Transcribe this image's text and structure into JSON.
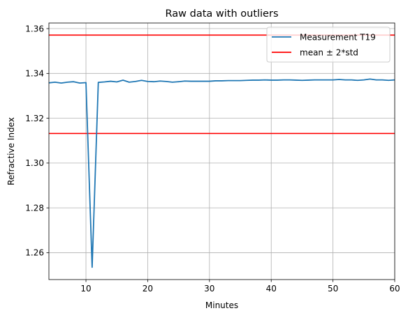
{
  "chart_data": {
    "type": "line",
    "title": "Raw data with outliers",
    "xlabel": "Minutes",
    "ylabel": "Refractive Index",
    "xlim": [
      4,
      60
    ],
    "ylim": [
      1.248,
      1.3625
    ],
    "xticks": [
      10,
      20,
      30,
      40,
      50,
      60
    ],
    "yticks": [
      1.26,
      1.28,
      1.3,
      1.32,
      1.34,
      1.36
    ],
    "ytick_labels": [
      "1.26",
      "1.28",
      "1.30",
      "1.32",
      "1.34",
      "1.36"
    ],
    "grid": true,
    "legend_position": "top-right",
    "series": [
      {
        "name": "Measurement T19",
        "color": "#1f77b4",
        "x": [
          4,
          5,
          6,
          7,
          8,
          9,
          10,
          11,
          12,
          13,
          14,
          15,
          16,
          17,
          18,
          19,
          20,
          21,
          22,
          23,
          24,
          25,
          26,
          27,
          28,
          29,
          30,
          31,
          32,
          33,
          34,
          35,
          36,
          37,
          38,
          39,
          40,
          41,
          42,
          43,
          44,
          45,
          46,
          47,
          48,
          49,
          50,
          51,
          52,
          53,
          54,
          55,
          56,
          57,
          58,
          59,
          60
        ],
        "y": [
          1.3358,
          1.3361,
          1.3357,
          1.3361,
          1.3363,
          1.3357,
          1.3359,
          1.2535,
          1.336,
          1.3362,
          1.3365,
          1.3362,
          1.337,
          1.3361,
          1.3364,
          1.3369,
          1.3364,
          1.3363,
          1.3366,
          1.3364,
          1.3361,
          1.3363,
          1.3366,
          1.3365,
          1.3365,
          1.3365,
          1.3365,
          1.3367,
          1.3367,
          1.3368,
          1.3368,
          1.3368,
          1.3369,
          1.337,
          1.337,
          1.3371,
          1.337,
          1.337,
          1.3371,
          1.3371,
          1.337,
          1.3369,
          1.337,
          1.3371,
          1.3371,
          1.3371,
          1.3371,
          1.3373,
          1.3371,
          1.3371,
          1.3369,
          1.3371,
          1.3375,
          1.3371,
          1.3371,
          1.3369,
          1.3371
        ]
      },
      {
        "name": "mean ± 2*std",
        "color": "#ff0000",
        "type": "hline",
        "values": [
          1.3571,
          1.3132
        ]
      }
    ]
  }
}
